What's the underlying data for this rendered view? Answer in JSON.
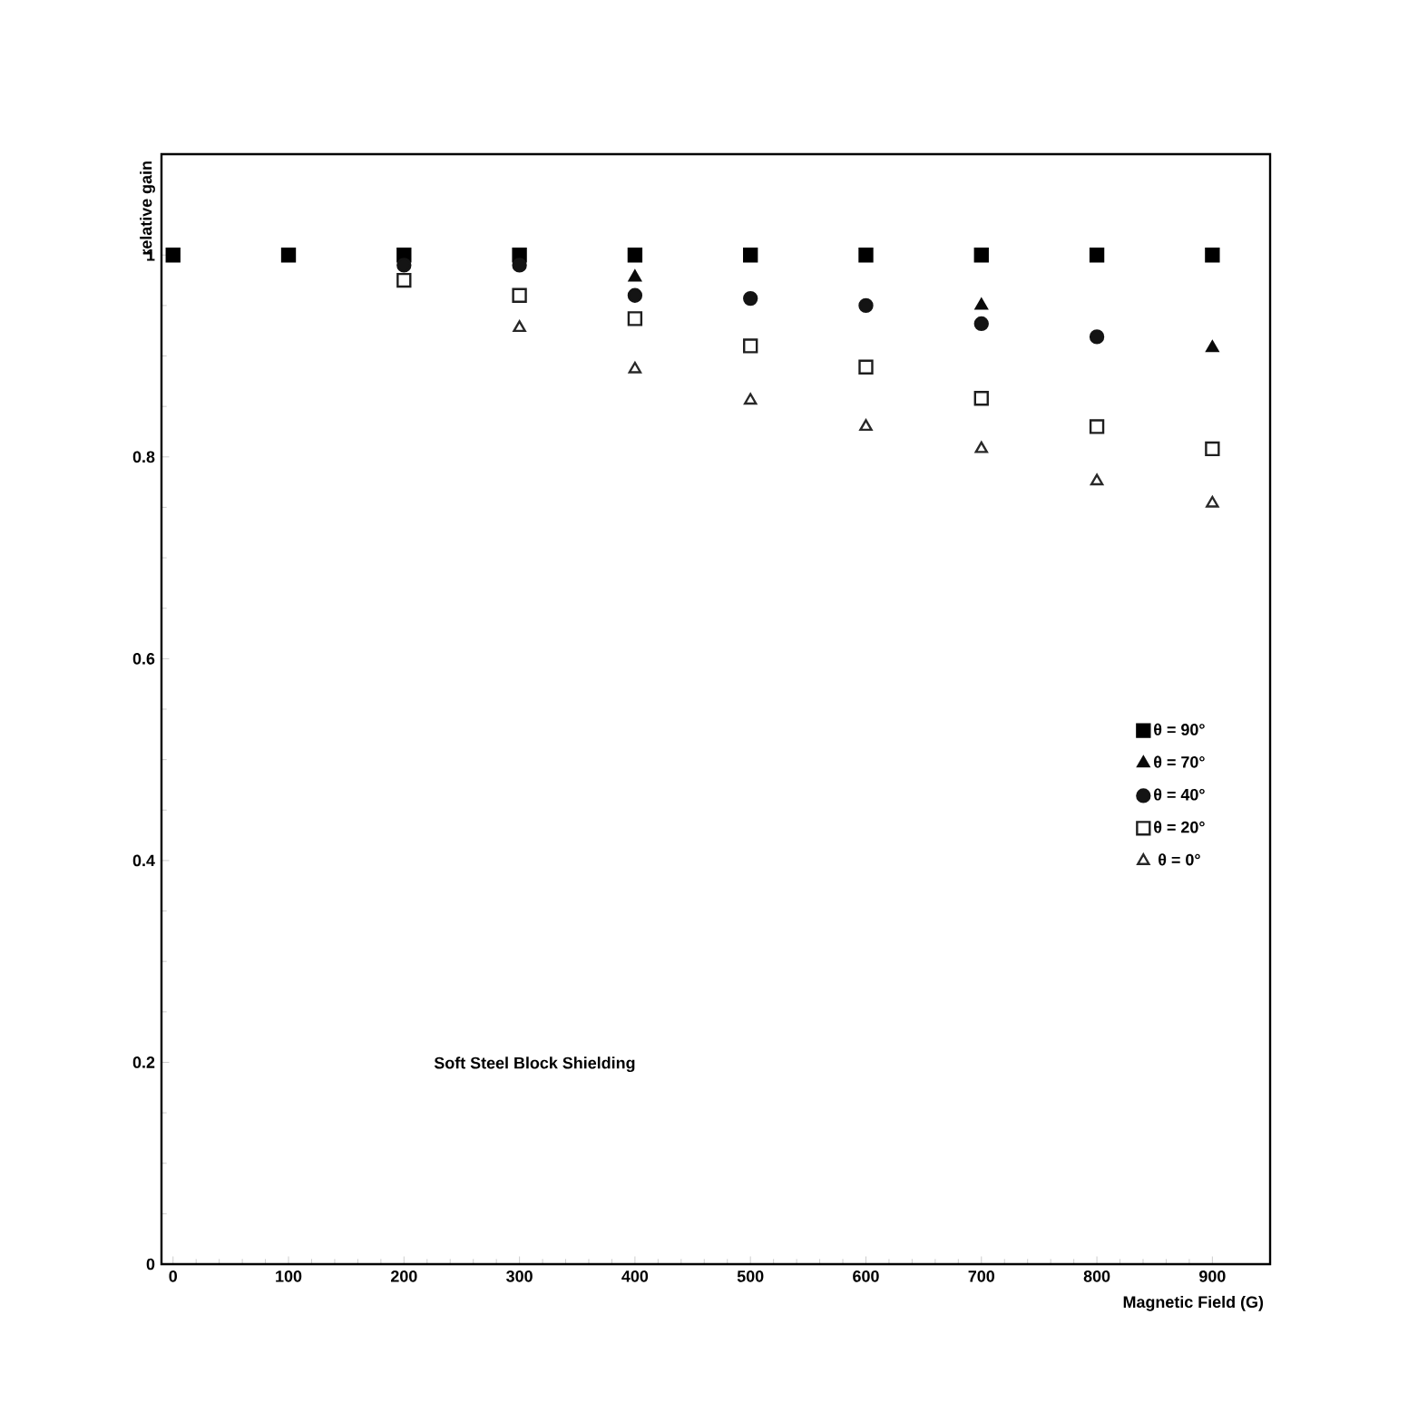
{
  "chart_data": {
    "type": "scatter",
    "xlabel": "Magnetic Field (G)",
    "ylabel": "relative gain",
    "x": [
      0,
      100,
      200,
      300,
      400,
      500,
      600,
      700,
      800,
      900
    ],
    "series": [
      {
        "name": "θ = 90°",
        "color": "#000000",
        "marker": "square",
        "values": [
          1,
          1,
          1,
          1,
          1,
          1,
          1,
          1,
          1,
          1
        ]
      },
      {
        "name": "θ = 70°",
        "color": "#0a0a0a",
        "marker": "triangle",
        "values": [
          null,
          null,
          null,
          null,
          0.978,
          null,
          null,
          0.95,
          null,
          0.908
        ]
      },
      {
        "name": "θ = 40°",
        "color": "#141414",
        "marker": "circle",
        "values": [
          null,
          null,
          0.99,
          0.99,
          0.96,
          0.957,
          0.95,
          0.932,
          0.919,
          null
        ]
      },
      {
        "name": "θ = 20°",
        "color": "#1e1e1e",
        "marker": "square",
        "values": [
          null,
          null,
          0.975,
          0.96,
          0.937,
          0.91,
          0.889,
          0.858,
          0.83,
          0.808
        ]
      },
      {
        "name": "θ = 0°",
        "color": "#282828",
        "marker": "triangle",
        "values": [
          null,
          null,
          null,
          0.928,
          0.887,
          0.856,
          0.83,
          0.808,
          0.776,
          0.754
        ]
      }
    ],
    "xlim": [
      -10,
      950
    ],
    "xticks": [
      0,
      100,
      200,
      300,
      400,
      500,
      600,
      700,
      800,
      900
    ],
    "ylim": [
      0,
      1.1
    ],
    "yticks": [
      0,
      0.2,
      0.4,
      0.6,
      0.8,
      1
    ],
    "legend": "right",
    "grid": false,
    "annotations": [
      "Soft Steel Block Shielding"
    ]
  }
}
